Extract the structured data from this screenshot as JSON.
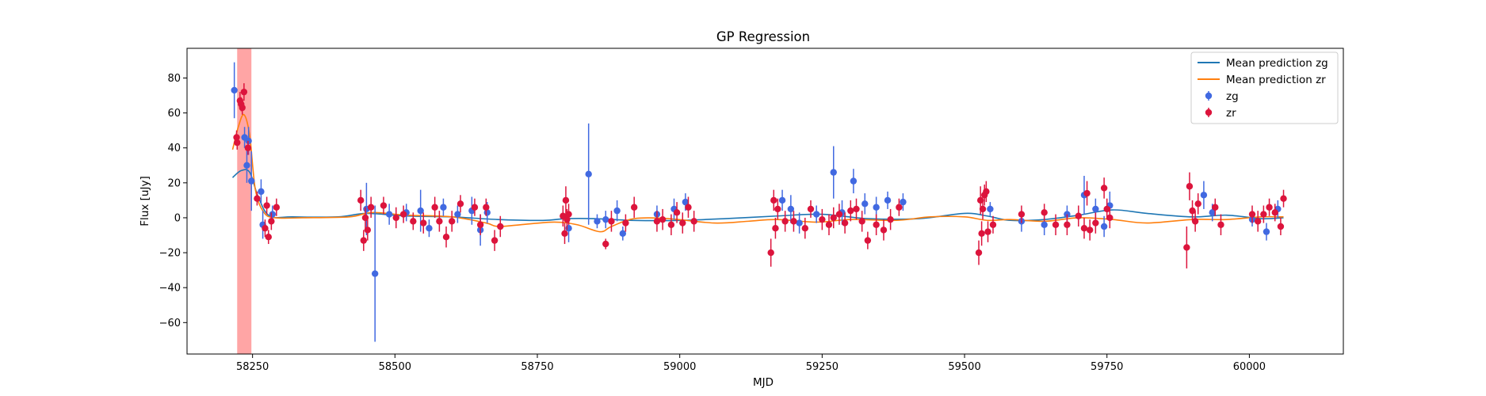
{
  "chart_data": {
    "type": "scatter",
    "title": "GP Regression",
    "xlabel": "MJD",
    "ylabel": "Flux [uJy]",
    "xlim": [
      58135,
      60165
    ],
    "ylim": [
      -78,
      97
    ],
    "xticks": [
      58250,
      58500,
      58750,
      59000,
      59250,
      59500,
      59750,
      60000
    ],
    "yticks": [
      -60,
      -40,
      -20,
      0,
      20,
      40,
      60,
      80
    ],
    "grid": false,
    "legend": "top-right",
    "shaded_region": {
      "x": [
        58223,
        58248
      ],
      "color": "#ff7f7f"
    },
    "colors": {
      "zg": "#4169e1",
      "zr": "#dc143c",
      "mean_zg": "#1f77b4",
      "mean_zr": "#ff7f0e"
    },
    "series": [
      {
        "name": "Mean prediction zg",
        "kind": "line",
        "x": [
          58215,
          58230,
          58245,
          58260,
          58280,
          58320,
          58400,
          58450,
          58520,
          58600,
          58680,
          58760,
          58800,
          58850,
          58920,
          59000,
          59080,
          59170,
          59250,
          59330,
          59420,
          59500,
          59540,
          59580,
          59640,
          59700,
          59760,
          59820,
          59900,
          59960,
          60020,
          60060
        ],
        "y": [
          23,
          27,
          26,
          12,
          1,
          0.5,
          0.5,
          2.5,
          1,
          0.5,
          -1,
          -1.5,
          -0.5,
          -0.5,
          -1.5,
          -1.5,
          -0.5,
          1,
          2,
          -0.5,
          -0.5,
          2.5,
          1,
          -1.5,
          -1,
          1.5,
          4.5,
          2.5,
          0.5,
          1.5,
          -0.5,
          0
        ]
      },
      {
        "name": "Mean prediction zr",
        "kind": "line",
        "x": [
          58215,
          58225,
          58235,
          58245,
          58255,
          58270,
          58290,
          58340,
          58420,
          58460,
          58520,
          58600,
          58660,
          58680,
          58720,
          58780,
          58820,
          58860,
          58880,
          58920,
          58980,
          59060,
          59120,
          59170,
          59240,
          59300,
          59380,
          59440,
          59500,
          59540,
          59580,
          59640,
          59700,
          59760,
          59820,
          59900,
          59960,
          60020,
          60060
        ],
        "y": [
          39,
          52,
          59,
          47,
          16,
          3,
          0,
          0,
          0.5,
          3,
          1.5,
          0.5,
          -3,
          -5,
          -4,
          -2.5,
          -4,
          -8,
          -5,
          -0.5,
          -0.5,
          -3,
          -2,
          -1,
          -2.5,
          -1,
          -1.5,
          0.5,
          0.5,
          -1.5,
          -1,
          -2,
          0,
          -1,
          -3,
          -1,
          -1,
          0.5,
          0.5
        ]
      },
      {
        "name": "zg",
        "kind": "errorbar",
        "points": [
          [
            58218,
            73,
            16
          ],
          [
            58236,
            46,
            6
          ],
          [
            58240,
            30,
            10
          ],
          [
            58243,
            44,
            8
          ],
          [
            58248,
            21,
            17
          ],
          [
            58265,
            15,
            7
          ],
          [
            58268,
            -4,
            8
          ],
          [
            58285,
            2,
            5
          ],
          [
            58450,
            5,
            15
          ],
          [
            58465,
            -32,
            39
          ],
          [
            58490,
            2,
            6
          ],
          [
            58520,
            3,
            5
          ],
          [
            58545,
            4,
            12
          ],
          [
            58560,
            -6,
            5
          ],
          [
            58585,
            6,
            5
          ],
          [
            58610,
            2,
            5
          ],
          [
            58635,
            4,
            8
          ],
          [
            58650,
            -7,
            9
          ],
          [
            58662,
            3,
            6
          ],
          [
            58805,
            -6,
            8
          ],
          [
            58840,
            25,
            29
          ],
          [
            58855,
            -2,
            4
          ],
          [
            58870,
            -1,
            5
          ],
          [
            58890,
            4,
            6
          ],
          [
            58900,
            -9,
            4
          ],
          [
            58960,
            2,
            5
          ],
          [
            58990,
            5,
            6
          ],
          [
            59010,
            9,
            5
          ],
          [
            59180,
            10,
            6
          ],
          [
            59195,
            5,
            8
          ],
          [
            59210,
            -3,
            6
          ],
          [
            59240,
            2,
            5
          ],
          [
            59270,
            26,
            15
          ],
          [
            59285,
            3,
            7
          ],
          [
            59305,
            21,
            7
          ],
          [
            59325,
            8,
            6
          ],
          [
            59345,
            6,
            6
          ],
          [
            59365,
            10,
            5
          ],
          [
            59392,
            9,
            5
          ],
          [
            59545,
            5,
            4
          ],
          [
            59600,
            -2,
            6
          ],
          [
            59640,
            -4,
            6
          ],
          [
            59680,
            2,
            5
          ],
          [
            59710,
            13,
            11
          ],
          [
            59730,
            5,
            6
          ],
          [
            59745,
            -5,
            6
          ],
          [
            59755,
            7,
            8
          ],
          [
            59920,
            13,
            8
          ],
          [
            59935,
            3,
            5
          ],
          [
            60005,
            -1,
            4
          ],
          [
            60030,
            -8,
            5
          ],
          [
            60050,
            5,
            5
          ]
        ]
      },
      {
        "name": "zr",
        "kind": "errorbar",
        "points": [
          [
            58222,
            46,
            4
          ],
          [
            58223,
            43,
            4
          ],
          [
            58228,
            67,
            5
          ],
          [
            58230,
            65,
            4
          ],
          [
            58232,
            63,
            4
          ],
          [
            58235,
            72,
            5
          ],
          [
            58242,
            40,
            4
          ],
          [
            58258,
            11,
            4
          ],
          [
            58272,
            -6,
            5
          ],
          [
            58275,
            7,
            5
          ],
          [
            58278,
            -11,
            4
          ],
          [
            58283,
            -2,
            5
          ],
          [
            58292,
            6,
            5
          ],
          [
            58440,
            10,
            6
          ],
          [
            58445,
            -13,
            6
          ],
          [
            58448,
            0,
            6
          ],
          [
            58452,
            -7,
            6
          ],
          [
            58458,
            6,
            6
          ],
          [
            58480,
            7,
            5
          ],
          [
            58502,
            0,
            6
          ],
          [
            58515,
            2,
            5
          ],
          [
            58532,
            -2,
            5
          ],
          [
            58550,
            -3,
            6
          ],
          [
            58570,
            6,
            6
          ],
          [
            58578,
            -2,
            6
          ],
          [
            58590,
            -11,
            6
          ],
          [
            58600,
            -2,
            6
          ],
          [
            58615,
            8,
            5
          ],
          [
            58640,
            6,
            5
          ],
          [
            58650,
            -4,
            6
          ],
          [
            58660,
            6,
            5
          ],
          [
            58675,
            -13,
            6
          ],
          [
            58685,
            -5,
            6
          ],
          [
            58795,
            1,
            6
          ],
          [
            58798,
            -9,
            6
          ],
          [
            58800,
            10,
            8
          ],
          [
            58802,
            -1,
            6
          ],
          [
            58805,
            2,
            6
          ],
          [
            58870,
            -15,
            3
          ],
          [
            58880,
            -2,
            6
          ],
          [
            58905,
            -3,
            5
          ],
          [
            58920,
            6,
            6
          ],
          [
            58960,
            -2,
            6
          ],
          [
            58970,
            -1,
            6
          ],
          [
            58985,
            -4,
            6
          ],
          [
            58995,
            3,
            6
          ],
          [
            59005,
            -3,
            6
          ],
          [
            59015,
            6,
            6
          ],
          [
            59025,
            -2,
            6
          ],
          [
            59160,
            -20,
            8
          ],
          [
            59165,
            10,
            6
          ],
          [
            59168,
            -6,
            6
          ],
          [
            59172,
            5,
            6
          ],
          [
            59185,
            -2,
            6
          ],
          [
            59200,
            -2,
            6
          ],
          [
            59220,
            -6,
            6
          ],
          [
            59230,
            5,
            5
          ],
          [
            59250,
            -1,
            6
          ],
          [
            59262,
            -4,
            6
          ],
          [
            59270,
            0,
            6
          ],
          [
            59280,
            2,
            6
          ],
          [
            59290,
            -3,
            6
          ],
          [
            59300,
            4,
            6
          ],
          [
            59310,
            5,
            6
          ],
          [
            59320,
            -2,
            6
          ],
          [
            59330,
            -13,
            5
          ],
          [
            59345,
            -4,
            6
          ],
          [
            59358,
            -7,
            6
          ],
          [
            59370,
            -1,
            6
          ],
          [
            59385,
            6,
            5
          ],
          [
            59525,
            -20,
            7
          ],
          [
            59528,
            10,
            8
          ],
          [
            59530,
            -9,
            7
          ],
          [
            59532,
            5,
            6
          ],
          [
            59535,
            13,
            6
          ],
          [
            59538,
            15,
            6
          ],
          [
            59541,
            -8,
            6
          ],
          [
            59550,
            -4,
            5
          ],
          [
            59600,
            2,
            5
          ],
          [
            59640,
            3,
            5
          ],
          [
            59660,
            -4,
            6
          ],
          [
            59680,
            -4,
            6
          ],
          [
            59700,
            1,
            6
          ],
          [
            59710,
            -6,
            6
          ],
          [
            59715,
            14,
            7
          ],
          [
            59720,
            -7,
            6
          ],
          [
            59730,
            -3,
            6
          ],
          [
            59745,
            17,
            6
          ],
          [
            59750,
            5,
            6
          ],
          [
            59755,
            0,
            6
          ],
          [
            59890,
            -17,
            12
          ],
          [
            59895,
            18,
            8
          ],
          [
            59900,
            4,
            6
          ],
          [
            59905,
            -2,
            6
          ],
          [
            59910,
            8,
            6
          ],
          [
            59940,
            6,
            5
          ],
          [
            59950,
            -4,
            6
          ],
          [
            60005,
            2,
            5
          ],
          [
            60015,
            -2,
            6
          ],
          [
            60025,
            2,
            5
          ],
          [
            60035,
            6,
            5
          ],
          [
            60045,
            3,
            5
          ],
          [
            60055,
            -5,
            5
          ],
          [
            60060,
            11,
            5
          ]
        ]
      }
    ]
  }
}
